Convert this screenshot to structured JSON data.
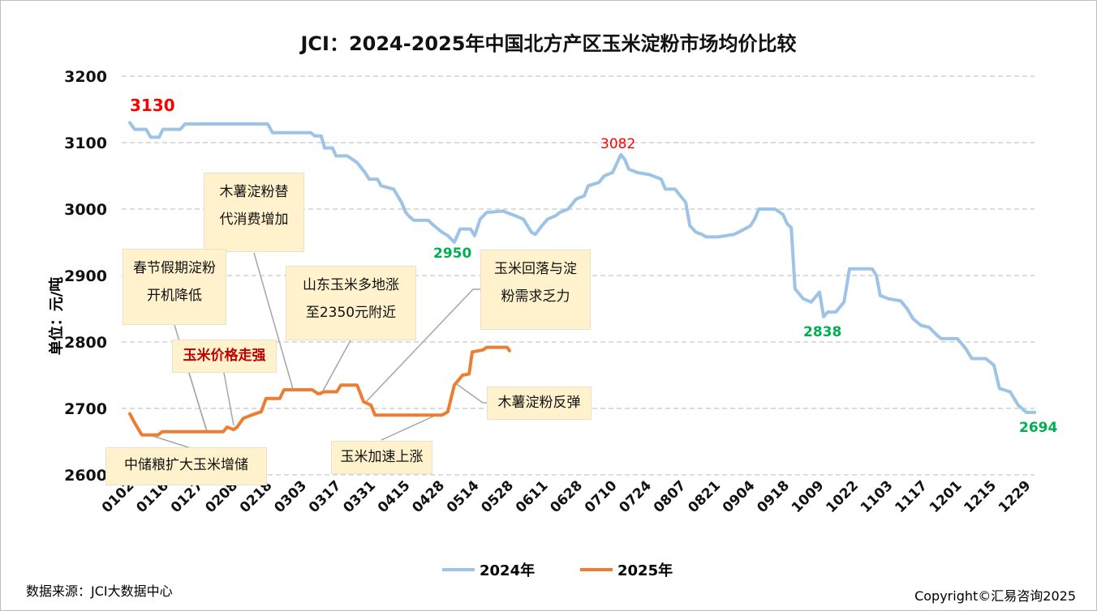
{
  "chart_data": {
    "type": "line",
    "title": "JCI：2024-2025年中国北方产区玉米淀粉市场均价比较",
    "ylabel": "单位：元/吨",
    "xlabel": "",
    "ylim": [
      2600,
      3200
    ],
    "yticks": [
      2600,
      2700,
      2800,
      2900,
      3000,
      3100,
      3200
    ],
    "grid": true,
    "legend_position": "bottom",
    "x_unit_note": "x is trading-day position, 10 units per tick label",
    "xticks": [
      "0102",
      "0116",
      "0127",
      "0208",
      "0218",
      "0303",
      "0317",
      "0331",
      "0415",
      "0428",
      "0514",
      "0528",
      "0611",
      "0628",
      "0710",
      "0724",
      "0807",
      "0821",
      "0904",
      "0918",
      "1009",
      "1022",
      "1103",
      "1117",
      "1201",
      "1215",
      "1229"
    ],
    "series": [
      {
        "name": "2024年",
        "color": "#9dc3e6",
        "points": [
          [
            0,
            3130
          ],
          [
            1.4,
            3120
          ],
          [
            4.7,
            3120
          ],
          [
            6.1,
            3108
          ],
          [
            8.5,
            3108
          ],
          [
            9.6,
            3120
          ],
          [
            14.6,
            3120
          ],
          [
            16,
            3128
          ],
          [
            40,
            3128
          ],
          [
            41.4,
            3115
          ],
          [
            52.5,
            3115
          ],
          [
            53.6,
            3110
          ],
          [
            55.5,
            3110
          ],
          [
            56.5,
            3092
          ],
          [
            58.8,
            3092
          ],
          [
            59.8,
            3080
          ],
          [
            63.1,
            3080
          ],
          [
            65.9,
            3070
          ],
          [
            68.2,
            3055
          ],
          [
            69.4,
            3045
          ],
          [
            71.8,
            3045
          ],
          [
            72.9,
            3035
          ],
          [
            76.5,
            3030
          ],
          [
            78.8,
            3010
          ],
          [
            80,
            2995
          ],
          [
            81.2,
            2988
          ],
          [
            82.4,
            2983
          ],
          [
            86.6,
            2983
          ],
          [
            88.2,
            2975
          ],
          [
            90.6,
            2965
          ],
          [
            92.2,
            2960
          ],
          [
            94.1,
            2950
          ],
          [
            95.8,
            2970
          ],
          [
            98.8,
            2970
          ],
          [
            100,
            2960
          ],
          [
            101.6,
            2985
          ],
          [
            103.5,
            2995
          ],
          [
            108.2,
            2997
          ],
          [
            111.8,
            2990
          ],
          [
            114.1,
            2985
          ],
          [
            116.5,
            2965
          ],
          [
            117.6,
            2962
          ],
          [
            119.5,
            2975
          ],
          [
            121.2,
            2985
          ],
          [
            123.5,
            2990
          ],
          [
            124.7,
            2995
          ],
          [
            127.1,
            3000
          ],
          [
            129.4,
            3015
          ],
          [
            131.8,
            3020
          ],
          [
            132.9,
            3035
          ],
          [
            136,
            3040
          ],
          [
            137.6,
            3050
          ],
          [
            140,
            3055
          ],
          [
            142.4,
            3082
          ],
          [
            143.5,
            3075
          ],
          [
            144.7,
            3060
          ],
          [
            147.1,
            3055
          ],
          [
            150.6,
            3052
          ],
          [
            154.1,
            3045
          ],
          [
            155.3,
            3030
          ],
          [
            158.1,
            3030
          ],
          [
            161.2,
            3010
          ],
          [
            162.4,
            2975
          ],
          [
            164.2,
            2965
          ],
          [
            165.9,
            2962
          ],
          [
            167.1,
            2958
          ],
          [
            170.6,
            2958
          ],
          [
            172.9,
            2960
          ],
          [
            175.3,
            2962
          ],
          [
            177.6,
            2968
          ],
          [
            180,
            2975
          ],
          [
            181.2,
            2985
          ],
          [
            182.4,
            3000
          ],
          [
            187.1,
            3000
          ],
          [
            189.4,
            2992
          ],
          [
            190.6,
            2978
          ],
          [
            191.8,
            2972
          ],
          [
            192.9,
            2880
          ],
          [
            195.3,
            2865
          ],
          [
            197.6,
            2860
          ],
          [
            200,
            2875
          ],
          [
            201.2,
            2838
          ],
          [
            202.4,
            2845
          ],
          [
            204.7,
            2845
          ],
          [
            207.1,
            2860
          ],
          [
            208.7,
            2910
          ],
          [
            215.3,
            2910
          ],
          [
            216.5,
            2900
          ],
          [
            217.6,
            2870
          ],
          [
            220,
            2865
          ],
          [
            223.5,
            2862
          ],
          [
            225.4,
            2850
          ],
          [
            227.1,
            2835
          ],
          [
            229.4,
            2825
          ],
          [
            231.8,
            2822
          ],
          [
            234.1,
            2810
          ],
          [
            235.3,
            2805
          ],
          [
            240,
            2805
          ],
          [
            242.4,
            2790
          ],
          [
            244.2,
            2775
          ],
          [
            248.2,
            2775
          ],
          [
            250.6,
            2765
          ],
          [
            252.2,
            2730
          ],
          [
            255.3,
            2725
          ],
          [
            257.6,
            2705
          ],
          [
            260,
            2694
          ],
          [
            262.4,
            2694
          ]
        ]
      },
      {
        "name": "2025年",
        "color": "#ed7d31",
        "points": [
          [
            0,
            2692
          ],
          [
            1.2,
            2680
          ],
          [
            3.5,
            2660
          ],
          [
            8.2,
            2660
          ],
          [
            9.4,
            2665
          ],
          [
            27.1,
            2665
          ],
          [
            28.2,
            2672
          ],
          [
            30.1,
            2668
          ],
          [
            31.1,
            2672
          ],
          [
            32.9,
            2685
          ],
          [
            35.3,
            2690
          ],
          [
            38.1,
            2695
          ],
          [
            39.5,
            2715
          ],
          [
            43.5,
            2715
          ],
          [
            44.7,
            2728
          ],
          [
            52.9,
            2728
          ],
          [
            54.6,
            2722
          ],
          [
            56.5,
            2725
          ],
          [
            60,
            2725
          ],
          [
            61.2,
            2735
          ],
          [
            65.9,
            2735
          ],
          [
            67.8,
            2710
          ],
          [
            69.9,
            2705
          ],
          [
            71.1,
            2690
          ],
          [
            90.6,
            2690
          ],
          [
            92.2,
            2695
          ],
          [
            94.1,
            2735
          ],
          [
            96.5,
            2750
          ],
          [
            98.4,
            2752
          ],
          [
            99.3,
            2785
          ],
          [
            102.4,
            2788
          ],
          [
            103.5,
            2792
          ],
          [
            109.4,
            2792
          ],
          [
            110.1,
            2787
          ]
        ]
      }
    ],
    "data_labels": [
      {
        "text": "3130",
        "color": "#ff0000"
      },
      {
        "text": "3082",
        "color": "#ff0000"
      },
      {
        "text": "2950",
        "color": "#00b050"
      },
      {
        "text": "2838",
        "color": "#00b050"
      },
      {
        "text": "2694",
        "color": "#00b050"
      }
    ],
    "annotations": [
      {
        "lines": [
          "木薯淀粉替",
          "代消费增加"
        ]
      },
      {
        "lines": [
          "春节假期淀粉",
          "开机降低"
        ]
      },
      {
        "lines": [
          "玉米价格走强"
        ]
      },
      {
        "lines": [
          "山东玉米多地涨",
          "至2350元附近"
        ]
      },
      {
        "lines": [
          "玉米回落与淀",
          "粉需求乏力"
        ]
      },
      {
        "lines": [
          "木薯淀粉反弹"
        ]
      },
      {
        "lines": [
          "玉米加速上涨"
        ]
      },
      {
        "lines": [
          "中储粮扩大玉米增储"
        ]
      }
    ]
  },
  "footer": {
    "source": "数据来源：JCI大数据中心",
    "copyright": "Copyright©汇易咨询2025"
  }
}
